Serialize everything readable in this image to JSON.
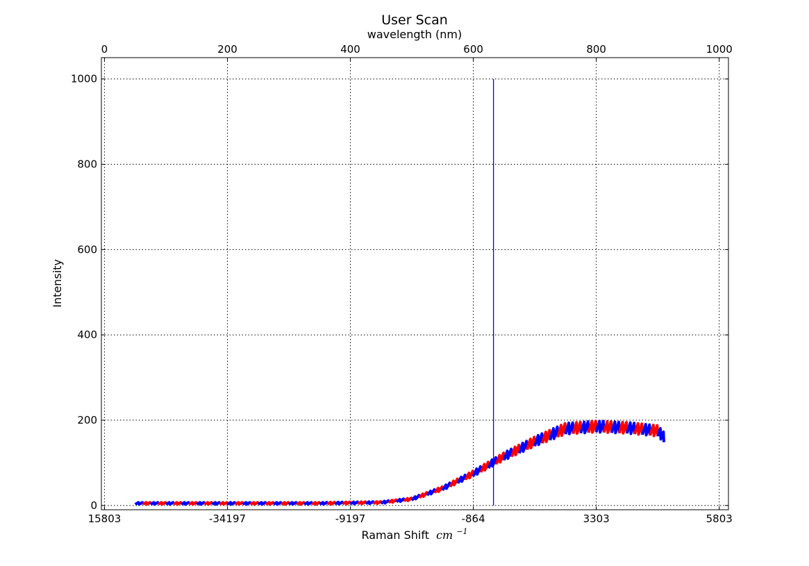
{
  "chart_data": {
    "type": "line",
    "title": "User Scan",
    "top_xlabel": "wavelength (nm)",
    "xlabel": "Raman Shift",
    "xlabel_unit": "cm",
    "xlabel_unit_exp": "−1",
    "ylabel": "Intensity",
    "top_xlim": [
      -5,
      1015
    ],
    "top_xticks": [
      "0",
      "200",
      "400",
      "600",
      "800",
      "1000"
    ],
    "top_xtick_values": [
      0,
      200,
      400,
      600,
      800,
      1000
    ],
    "bottom_xticks": [
      "15803",
      "-34197",
      "-9197",
      "-864",
      "3303",
      "5803"
    ],
    "ylim": [
      -10,
      1050
    ],
    "yticks": [
      0,
      200,
      400,
      600,
      800,
      1000
    ],
    "grid": true,
    "colors": {
      "series_a": "#0000ff",
      "series_b": "#ff0000",
      "marker_line": "#0000ff"
    },
    "marker_line": {
      "wavelength_nm": 632.8,
      "y_from": 0,
      "y_to": 1000
    },
    "series": [
      {
        "color": "#0000ff",
        "alternating_with": "#ff0000",
        "wavelength_nm": [
          50,
          100,
          150,
          200,
          250,
          300,
          350,
          400,
          450,
          500,
          550,
          600,
          650,
          700,
          750,
          800,
          850,
          900,
          910
        ],
        "intensity": [
          5,
          5,
          5,
          5,
          5,
          5,
          5,
          6,
          7,
          15,
          40,
          75,
          115,
          150,
          180,
          185,
          182,
          175,
          160
        ]
      }
    ]
  }
}
